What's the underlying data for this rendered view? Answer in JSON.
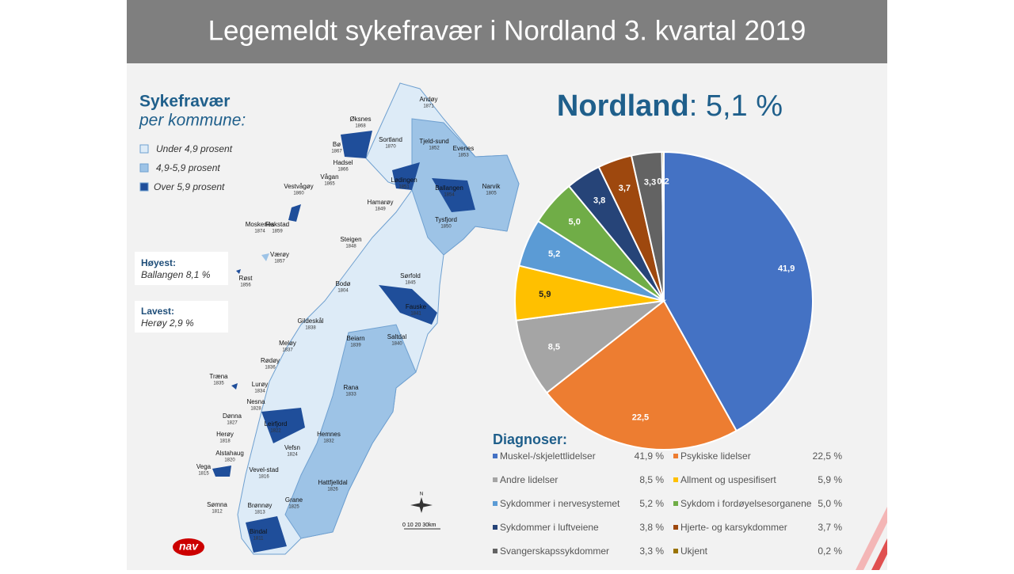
{
  "header": {
    "title": "Legemeldt sykefravær i Nordland 3. kvartal 2019"
  },
  "headline": {
    "region": "Nordland",
    "rate": ": 5,1 %"
  },
  "map": {
    "title": "Sykefravær",
    "subtitle": "per kommune:",
    "legend": [
      {
        "label": "Under 4,9 prosent",
        "color": "#ddebf7"
      },
      {
        "label": "4,9-5,9 prosent",
        "color": "#9dc3e6"
      },
      {
        "label": "Over 5,9 prosent",
        "color": "#1f4e9a"
      }
    ],
    "highest": {
      "label": "Høyest:",
      "text": "Ballangen 8,1 %"
    },
    "lowest": {
      "label": "Lavest:",
      "text": "Herøy 2,9 %"
    },
    "compass": "N",
    "scale": "0  10  20  30km",
    "municipalities": [
      {
        "name": "Andøy",
        "code": "1871"
      },
      {
        "name": "Øksnes",
        "code": "1868"
      },
      {
        "name": "Sortland",
        "code": "1870"
      },
      {
        "name": "Tjeld-sund",
        "code": "1852"
      },
      {
        "name": "Evenes",
        "code": "1853"
      },
      {
        "name": "Bø",
        "code": "1867"
      },
      {
        "name": "Hadsel",
        "code": "1866"
      },
      {
        "name": "Vågan",
        "code": "1865"
      },
      {
        "name": "Vestvågøy",
        "code": "1860"
      },
      {
        "name": "Lødingen",
        "code": "1851"
      },
      {
        "name": "Ballangen",
        "code": "1854"
      },
      {
        "name": "Narvik",
        "code": "1805"
      },
      {
        "name": "Flakstad",
        "code": "1859"
      },
      {
        "name": "Hamarøy",
        "code": "1849"
      },
      {
        "name": "Tysfjord",
        "code": "1850"
      },
      {
        "name": "Moskenes",
        "code": "1874"
      },
      {
        "name": "Steigen",
        "code": "1848"
      },
      {
        "name": "Værøy",
        "code": "1857"
      },
      {
        "name": "Røst",
        "code": "1856"
      },
      {
        "name": "Sørfold",
        "code": "1845"
      },
      {
        "name": "Bodø",
        "code": "1804"
      },
      {
        "name": "Fauske",
        "code": "1841"
      },
      {
        "name": "Gildeskål",
        "code": "1838"
      },
      {
        "name": "Beiarn",
        "code": "1839"
      },
      {
        "name": "Saltdal",
        "code": "1840"
      },
      {
        "name": "Meløy",
        "code": "1837"
      },
      {
        "name": "Rødøy",
        "code": "1836"
      },
      {
        "name": "Træna",
        "code": "1835"
      },
      {
        "name": "Lurøy",
        "code": "1834"
      },
      {
        "name": "Rana",
        "code": "1833"
      },
      {
        "name": "Nesna",
        "code": "1828"
      },
      {
        "name": "Dønna",
        "code": "1827"
      },
      {
        "name": "Leirfjord",
        "code": "1822"
      },
      {
        "name": "Hemnes",
        "code": "1832"
      },
      {
        "name": "Herøy",
        "code": "1818"
      },
      {
        "name": "Alstahaug",
        "code": "1820"
      },
      {
        "name": "Vefsn",
        "code": "1824"
      },
      {
        "name": "Vega",
        "code": "1815"
      },
      {
        "name": "Vevel-stad",
        "code": "1816"
      },
      {
        "name": "Hattfjelldal",
        "code": "1826"
      },
      {
        "name": "Sømna",
        "code": "1812"
      },
      {
        "name": "Brønnøy",
        "code": "1813"
      },
      {
        "name": "Grane",
        "code": "1825"
      },
      {
        "name": "Bindal",
        "code": "1811"
      }
    ]
  },
  "logo": "nav",
  "chart_data": {
    "type": "pie",
    "legend_title": "Diagnoser:",
    "categories": [
      "Muskel-/skjelettlidelser",
      "Psykiske lidelser",
      "Andre lidelser",
      "Allment og uspesifisert",
      "Sykdommer i nervesystemet",
      "Sykdom i fordøyelsesorganene",
      "Sykdommer i luftveiene",
      "Hjerte- og karsykdommer",
      "Svangerskapssykdommer",
      "Ukjent"
    ],
    "values": [
      41.9,
      22.5,
      8.5,
      5.9,
      5.2,
      5.0,
      3.8,
      3.7,
      3.3,
      0.2
    ],
    "value_labels": [
      "41,9",
      "22,5",
      "8,5",
      "5,9",
      "5,2",
      "5,0",
      "3,8",
      "3,7",
      "3,3",
      "0,2"
    ],
    "legend_value_labels": [
      "41,9 %",
      "22,5 %",
      "8,5 %",
      "5,9 %",
      "5,2 %",
      "5,0 %",
      "3,8 %",
      "3,7 %",
      "3,3 %",
      "0,2 %"
    ],
    "colors": [
      "#4472c4",
      "#ed7d31",
      "#a5a5a5",
      "#ffc000",
      "#5b9bd5",
      "#70ad47",
      "#264478",
      "#9e480e",
      "#636363",
      "#997300"
    ]
  }
}
